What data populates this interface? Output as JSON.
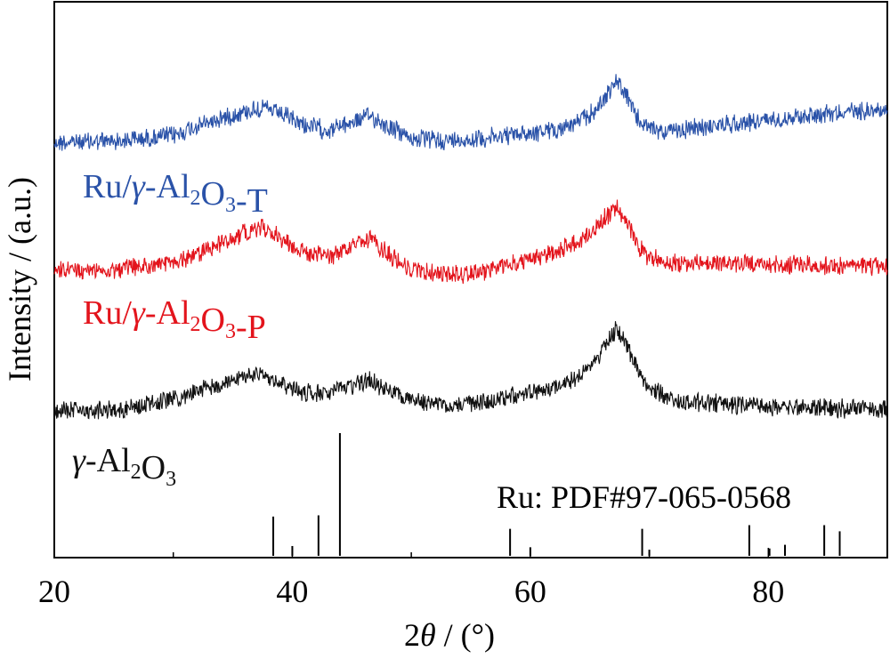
{
  "chart_data": {
    "type": "line",
    "xlabel": "2θ / (°)",
    "xlabel_parts": [
      "2",
      "θ",
      " / (°)"
    ],
    "ylabel": "Intensity / (a.u.)",
    "xlim": [
      20,
      90
    ],
    "xticks": [
      20,
      40,
      60,
      80
    ],
    "xtick_labels": [
      "20",
      "40",
      "60",
      "80"
    ],
    "y_ticks_shown": false,
    "grid": false,
    "series": [
      {
        "name": "Ru/γ-Al2O3-T",
        "label_parts": [
          {
            "t": "Ru/"
          },
          {
            "t": "γ",
            "style": "italic"
          },
          {
            "t": "-Al"
          },
          {
            "t": "2",
            "style": "sub"
          },
          {
            "t": "O"
          },
          {
            "t": "3",
            "style": "sub"
          },
          {
            "t": "-T"
          }
        ],
        "color": "#2a52a8",
        "x": [
          20,
          25,
          30,
          32,
          34,
          36,
          37.5,
          39,
          41,
          43,
          45,
          46.5,
          48,
          50,
          53,
          56,
          59,
          62,
          64,
          65.5,
          66.5,
          67.3,
          68,
          69,
          70,
          72,
          75,
          80,
          85,
          90
        ],
        "y": [
          150,
          151,
          155,
          162,
          168,
          173,
          176,
          171,
          163,
          159,
          165,
          170,
          162,
          153,
          151,
          153,
          156,
          159,
          165,
          174,
          187,
          196,
          186,
          168,
          160,
          158,
          162,
          167,
          172,
          175
        ]
      },
      {
        "name": "Ru/γ-Al2O3-P",
        "label_parts": [
          {
            "t": "Ru/"
          },
          {
            "t": "γ",
            "style": "italic"
          },
          {
            "t": "-Al"
          },
          {
            "t": "2",
            "style": "sub"
          },
          {
            "t": "O"
          },
          {
            "t": "3",
            "style": "sub"
          },
          {
            "t": "-P"
          }
        ],
        "color": "#e3141c",
        "x": [
          20,
          25,
          30,
          32,
          34,
          36,
          37.5,
          39,
          41,
          43,
          45,
          46.5,
          48,
          50,
          53,
          56,
          59,
          62,
          64,
          65.5,
          66.5,
          67.3,
          68,
          69,
          70,
          72,
          75,
          80,
          85,
          90
        ],
        "y": [
          50,
          51,
          56,
          63,
          71,
          79,
          83,
          75,
          64,
          61,
          68,
          74,
          63,
          51,
          47,
          50,
          56,
          64,
          72,
          82,
          92,
          97,
          88,
          70,
          60,
          56,
          56,
          55,
          54,
          53
        ]
      },
      {
        "name": "γ-Al2O3",
        "label_parts": [
          {
            "t": "γ",
            "style": "italic"
          },
          {
            "t": "-Al"
          },
          {
            "t": "2",
            "style": "sub"
          },
          {
            "t": "O"
          },
          {
            "t": "3",
            "style": "sub"
          }
        ],
        "color": "#111111",
        "x": [
          20,
          25,
          28,
          30,
          32,
          34,
          36,
          37.5,
          39,
          41,
          43,
          45,
          46.5,
          48,
          50,
          53,
          56,
          59,
          62,
          64,
          65.5,
          66.5,
          67.3,
          68,
          69,
          70,
          72,
          75,
          80,
          85,
          90
        ],
        "y": [
          0,
          2,
          8,
          15,
          25,
          36,
          45,
          48,
          37,
          24,
          22,
          33,
          40,
          28,
          12,
          8,
          12,
          20,
          32,
          44,
          68,
          95,
          108,
          90,
          55,
          30,
          15,
          10,
          6,
          4,
          2
        ]
      }
    ],
    "reference": {
      "label": "Ru: PDF#97-065-0568",
      "positions": [
        38.4,
        40.0,
        42.2,
        44.0,
        58.3,
        60.0,
        69.4,
        70.0,
        78.4,
        80.1,
        81.4,
        84.7,
        86.0
      ],
      "intensities": [
        32,
        8,
        33,
        100,
        22,
        7,
        22,
        5,
        25,
        6,
        9,
        25,
        20
      ]
    }
  }
}
